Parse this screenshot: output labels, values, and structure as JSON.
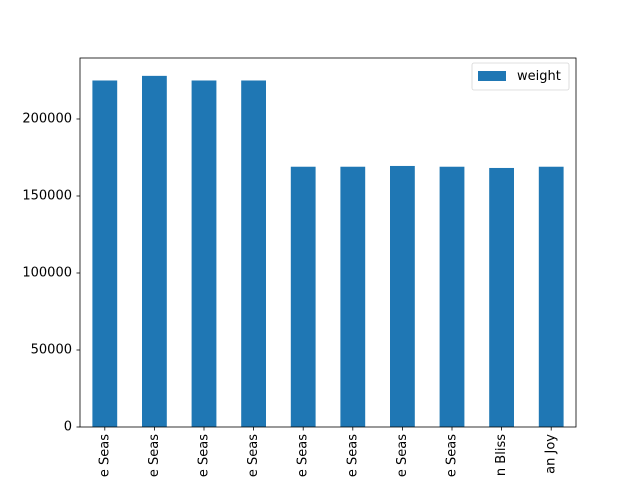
{
  "chart_data": {
    "type": "bar",
    "categories": [
      "e Seas",
      "e Seas",
      "e Seas",
      "e Seas",
      "e Seas",
      "e Seas",
      "e Seas",
      "e Seas",
      "n Bliss",
      "an Joy"
    ],
    "series": [
      {
        "name": "weight",
        "color": "#1f77b4",
        "values": [
          225000,
          228000,
          225000,
          225000,
          169000,
          169000,
          169500,
          169000,
          168200,
          169000
        ]
      }
    ],
    "ylim": [
      0,
      239600
    ],
    "yticks": [
      0,
      50000,
      100000,
      150000,
      200000
    ],
    "legend": "upper-right",
    "grid": false
  }
}
